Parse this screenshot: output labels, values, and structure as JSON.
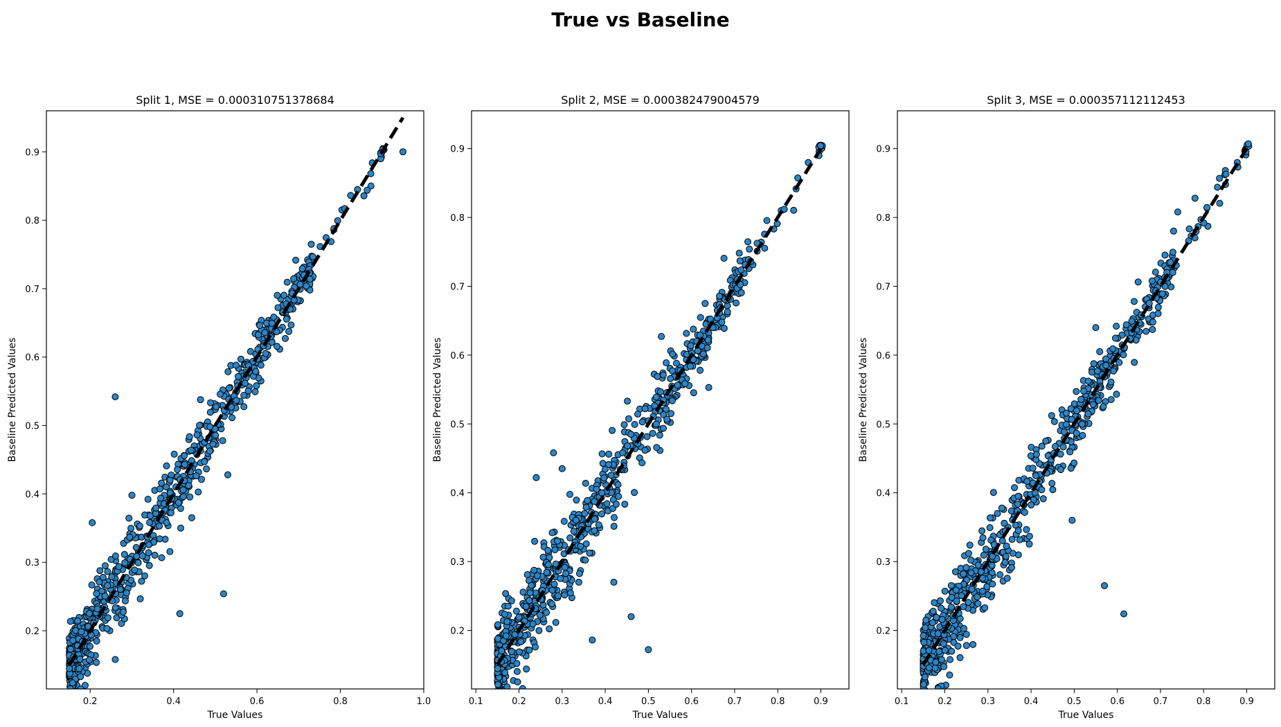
{
  "figure": {
    "title": "True vs Baseline"
  },
  "style": {
    "point_color": "#2c85c6",
    "point_edge": "#000000",
    "line_color": "#000000"
  },
  "chart_data": [
    {
      "type": "scatter",
      "title": "Split 1, MSE = 0.000310751378684",
      "xlabel": "True Values",
      "ylabel": "Baseline Predicted Values",
      "xlim": [
        0.095,
        1.0
      ],
      "ylim": [
        0.115,
        0.96
      ],
      "xticks": [
        0.2,
        0.4,
        0.6,
        0.8,
        1.0
      ],
      "xtick_labels": [
        "0.2",
        "0.4",
        "0.6",
        "0.8",
        "1.0"
      ],
      "yticks": [
        0.2,
        0.3,
        0.4,
        0.5,
        0.6,
        0.7,
        0.8,
        0.9
      ],
      "ytick_labels": [
        "0.2",
        "0.3",
        "0.4",
        "0.5",
        "0.6",
        "0.7",
        "0.8",
        "0.9"
      ],
      "reference_line": {
        "x": [
          0.15,
          0.95
        ],
        "y": [
          0.15,
          0.95
        ],
        "style": "dashed"
      },
      "outliers": [
        [
          0.26,
          0.542
        ],
        [
          0.26,
          0.158
        ],
        [
          0.52,
          0.254
        ],
        [
          0.415,
          0.225
        ],
        [
          0.205,
          0.358
        ],
        [
          0.95,
          0.9
        ],
        [
          0.53,
          0.428
        ],
        [
          0.3,
          0.398
        ]
      ],
      "cluster": {
        "x_range": [
          0.15,
          0.9
        ],
        "n_points": 700,
        "noise": 0.018
      },
      "grid": false
    },
    {
      "type": "scatter",
      "title": "Split 2, MSE = 0.000382479004579",
      "xlabel": "True Values",
      "ylabel": "Baseline Predicted Values",
      "xlim": [
        0.09,
        0.965
      ],
      "ylim": [
        0.115,
        0.955
      ],
      "xticks": [
        0.1,
        0.2,
        0.3,
        0.4,
        0.5,
        0.6,
        0.7,
        0.8,
        0.9
      ],
      "xtick_labels": [
        "0.1",
        "0.2",
        "0.3",
        "0.4",
        "0.5",
        "0.6",
        "0.7",
        "0.8",
        "0.9"
      ],
      "yticks": [
        0.2,
        0.3,
        0.4,
        0.5,
        0.6,
        0.7,
        0.8,
        0.9
      ],
      "ytick_labels": [
        "0.2",
        "0.3",
        "0.4",
        "0.5",
        "0.6",
        "0.7",
        "0.8",
        "0.9"
      ],
      "reference_line": {
        "x": [
          0.15,
          0.9
        ],
        "y": [
          0.15,
          0.9
        ],
        "style": "dashed"
      },
      "outliers": [
        [
          0.28,
          0.458
        ],
        [
          0.24,
          0.422
        ],
        [
          0.3,
          0.435
        ],
        [
          0.5,
          0.172
        ],
        [
          0.46,
          0.22
        ],
        [
          0.37,
          0.186
        ],
        [
          0.195,
          0.152
        ],
        [
          0.42,
          0.27
        ],
        [
          0.53,
          0.627
        ],
        [
          0.64,
          0.553
        ],
        [
          0.62,
          0.578
        ]
      ],
      "cluster": {
        "x_range": [
          0.15,
          0.9
        ],
        "n_points": 700,
        "noise": 0.02
      },
      "grid": false
    },
    {
      "type": "scatter",
      "title": "Split 3, MSE = 0.000357112112453",
      "xlabel": "True Values",
      "ylabel": "Baseline Predicted Values",
      "xlim": [
        0.09,
        0.965
      ],
      "ylim": [
        0.115,
        0.955
      ],
      "xticks": [
        0.1,
        0.2,
        0.3,
        0.4,
        0.5,
        0.6,
        0.7,
        0.8,
        0.9
      ],
      "xtick_labels": [
        "0.1",
        "0.2",
        "0.3",
        "0.4",
        "0.5",
        "0.6",
        "0.7",
        "0.8",
        "0.9"
      ],
      "yticks": [
        0.2,
        0.3,
        0.4,
        0.5,
        0.6,
        0.7,
        0.8,
        0.9
      ],
      "ytick_labels": [
        "0.2",
        "0.3",
        "0.4",
        "0.5",
        "0.6",
        "0.7",
        "0.8",
        "0.9"
      ],
      "reference_line": {
        "x": [
          0.15,
          0.9
        ],
        "y": [
          0.15,
          0.9
        ],
        "style": "dashed"
      },
      "outliers": [
        [
          0.57,
          0.265
        ],
        [
          0.615,
          0.224
        ],
        [
          0.78,
          0.828
        ],
        [
          0.74,
          0.808
        ],
        [
          0.55,
          0.64
        ],
        [
          0.495,
          0.36
        ]
      ],
      "cluster": {
        "x_range": [
          0.15,
          0.9
        ],
        "n_points": 700,
        "noise": 0.02
      },
      "grid": false
    }
  ]
}
